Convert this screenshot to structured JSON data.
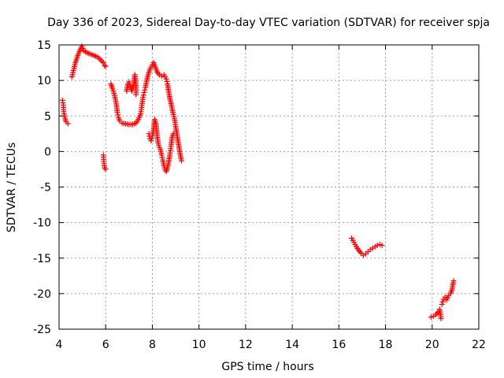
{
  "chart_data": {
    "type": "scatter",
    "title": "Day 336 of 2023, Sidereal Day-to-day VTEC variation (SDTVAR) for receiver spja",
    "xlabel": "GPS time / hours",
    "ylabel": "SDTVAR / TECUs",
    "xlim": [
      4,
      22
    ],
    "ylim": [
      -25,
      15
    ],
    "xticks": [
      4,
      6,
      8,
      10,
      12,
      14,
      16,
      18,
      20,
      22
    ],
    "yticks": [
      -25,
      -20,
      -15,
      -10,
      -5,
      0,
      5,
      10,
      15
    ],
    "grid": true,
    "marker": "+",
    "color": "#ff0000",
    "series": [
      {
        "name": "SDTVAR",
        "points": [
          [
            4.15,
            7.2
          ],
          [
            4.18,
            6.5
          ],
          [
            4.2,
            5.6
          ],
          [
            4.25,
            4.7
          ],
          [
            4.3,
            4.2
          ],
          [
            4.38,
            3.9
          ],
          [
            4.55,
            10.5
          ],
          [
            4.62,
            11.4
          ],
          [
            4.7,
            12.5
          ],
          [
            4.8,
            13.5
          ],
          [
            4.9,
            14.3
          ],
          [
            4.98,
            14.8
          ],
          [
            5.05,
            14.2
          ],
          [
            5.2,
            13.9
          ],
          [
            5.35,
            13.7
          ],
          [
            5.5,
            13.5
          ],
          [
            5.65,
            13.3
          ],
          [
            5.72,
            13.1
          ],
          [
            5.9,
            12.5
          ],
          [
            5.95,
            12.1
          ],
          [
            6.0,
            12.0
          ],
          [
            5.9,
            -0.5
          ],
          [
            5.92,
            -1.4
          ],
          [
            5.95,
            -2.3
          ],
          [
            6.0,
            -2.5
          ],
          [
            6.22,
            9.5
          ],
          [
            6.3,
            8.8
          ],
          [
            6.38,
            7.9
          ],
          [
            6.45,
            6.8
          ],
          [
            6.5,
            5.5
          ],
          [
            6.55,
            4.8
          ],
          [
            6.6,
            4.3
          ],
          [
            6.7,
            4.0
          ],
          [
            6.85,
            3.9
          ],
          [
            7.0,
            3.8
          ],
          [
            7.15,
            3.8
          ],
          [
            7.3,
            4.0
          ],
          [
            7.4,
            4.5
          ],
          [
            7.5,
            5.3
          ],
          [
            7.55,
            6.5
          ],
          [
            7.6,
            7.6
          ],
          [
            7.65,
            8.3
          ],
          [
            7.7,
            9.0
          ],
          [
            7.75,
            9.8
          ],
          [
            7.82,
            10.8
          ],
          [
            7.9,
            11.6
          ],
          [
            8.0,
            12.2
          ],
          [
            8.05,
            12.5
          ],
          [
            8.12,
            12.0
          ],
          [
            8.2,
            11.2
          ],
          [
            8.3,
            10.8
          ],
          [
            8.4,
            10.6
          ],
          [
            8.5,
            10.8
          ],
          [
            8.6,
            10.2
          ],
          [
            8.65,
            9.5
          ],
          [
            8.7,
            8.5
          ],
          [
            8.75,
            7.5
          ],
          [
            8.82,
            6.5
          ],
          [
            8.88,
            5.5
          ],
          [
            8.95,
            4.6
          ],
          [
            9.0,
            3.5
          ],
          [
            9.05,
            2.5
          ],
          [
            9.1,
            1.5
          ],
          [
            9.15,
            0.5
          ],
          [
            9.2,
            -0.5
          ],
          [
            9.25,
            -1.3
          ],
          [
            6.9,
            8.5
          ],
          [
            6.95,
            9.5
          ],
          [
            7.0,
            9.8
          ],
          [
            7.05,
            9.1
          ],
          [
            7.12,
            8.5
          ],
          [
            7.2,
            9.5
          ],
          [
            7.25,
            10.8
          ],
          [
            7.3,
            9.3
          ],
          [
            7.3,
            8.0
          ],
          [
            7.85,
            2.5
          ],
          [
            7.9,
            1.8
          ],
          [
            7.95,
            1.5
          ],
          [
            8.0,
            2.2
          ],
          [
            8.05,
            3.0
          ],
          [
            8.1,
            4.5
          ],
          [
            8.15,
            4.0
          ],
          [
            8.2,
            2.5
          ],
          [
            8.25,
            1.2
          ],
          [
            8.3,
            0.6
          ],
          [
            8.35,
            0.3
          ],
          [
            8.4,
            -0.5
          ],
          [
            8.45,
            -1.2
          ],
          [
            8.5,
            -2.0
          ],
          [
            8.55,
            -2.6
          ],
          [
            8.6,
            -2.8
          ],
          [
            8.65,
            -2.3
          ],
          [
            8.7,
            -1.5
          ],
          [
            8.75,
            -0.5
          ],
          [
            8.8,
            0.7
          ],
          [
            8.85,
            2.0
          ],
          [
            8.9,
            2.5
          ],
          [
            16.55,
            -12.2
          ],
          [
            16.65,
            -12.8
          ],
          [
            16.75,
            -13.4
          ],
          [
            16.85,
            -13.9
          ],
          [
            16.95,
            -14.3
          ],
          [
            17.05,
            -14.6
          ],
          [
            17.15,
            -14.4
          ],
          [
            17.25,
            -14.1
          ],
          [
            17.35,
            -13.8
          ],
          [
            17.45,
            -13.6
          ],
          [
            17.55,
            -13.4
          ],
          [
            17.65,
            -13.2
          ],
          [
            17.75,
            -13.1
          ],
          [
            17.85,
            -13.2
          ],
          [
            19.95,
            -23.3
          ],
          [
            20.05,
            -23.2
          ],
          [
            20.15,
            -23.0
          ],
          [
            20.25,
            -22.6
          ],
          [
            20.32,
            -22.2
          ],
          [
            20.38,
            -23.5
          ],
          [
            20.42,
            -21.5
          ],
          [
            20.48,
            -20.8
          ],
          [
            20.55,
            -20.5
          ],
          [
            20.62,
            -20.9
          ],
          [
            20.7,
            -20.3
          ],
          [
            20.78,
            -20.0
          ],
          [
            20.85,
            -19.5
          ],
          [
            20.9,
            -18.5
          ],
          [
            20.92,
            -18.2
          ]
        ]
      }
    ]
  }
}
